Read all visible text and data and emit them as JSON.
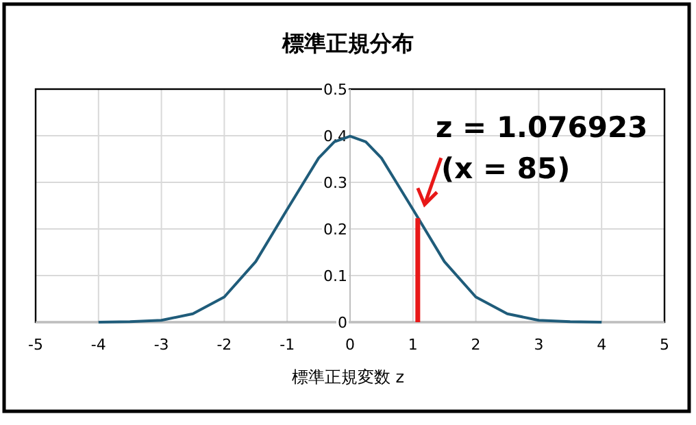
{
  "chart_data": {
    "type": "line",
    "title": "標準正規分布",
    "xlabel": "標準正規変数 z",
    "xlim": [
      -5,
      5
    ],
    "xticks": [
      -5,
      -4,
      -3,
      -2,
      -1,
      0,
      1,
      2,
      3,
      4,
      5
    ],
    "ylim": [
      0,
      0.5
    ],
    "yticks": [
      0,
      0.1,
      0.2,
      0.3,
      0.4,
      0.5
    ],
    "grid": true,
    "series": [
      {
        "color": "#1f5c7a",
        "x": [
          -4,
          -3.5,
          -3,
          -2.5,
          -2,
          -1.5,
          -1,
          -0.5,
          -0.25,
          0,
          0.25,
          0.5,
          1,
          1.5,
          2,
          2.5,
          3,
          3.5,
          4
        ],
        "values": [
          0,
          0.001,
          0.004,
          0.018,
          0.054,
          0.13,
          0.242,
          0.352,
          0.387,
          0.399,
          0.387,
          0.352,
          0.242,
          0.13,
          0.054,
          0.018,
          0.004,
          0.001,
          0
        ]
      },
      {
        "color": "#e81818",
        "x": [
          1.076923,
          1.076923
        ],
        "values": [
          0,
          0.223
        ]
      }
    ],
    "annotations": [
      "z = 1.076923",
      {
        "text": "(x = 85)",
        "x": 1.076923,
        "y": 0.223
      }
    ]
  }
}
